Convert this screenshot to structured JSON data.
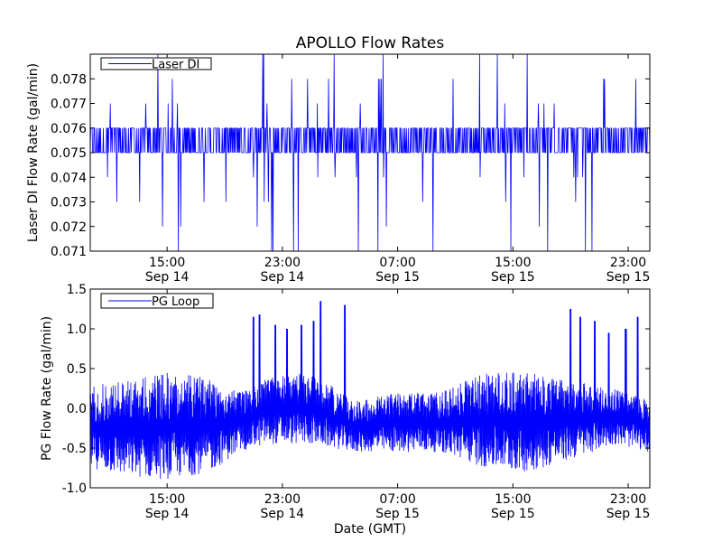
{
  "colors": {
    "series": "#0000ff",
    "axes": "#000000",
    "background": "#ffffff"
  },
  "figure_title": "APOLLO Flow Rates",
  "shared_xlabel": "Date (GMT)",
  "chart_data": [
    {
      "type": "line",
      "title": "APOLLO Flow Rates",
      "xlabel": "",
      "ylabel": "Laser DI Flow Rate (gal/min)",
      "xlim": [
        "Sep 14 09:40",
        "Sep 16 00:30"
      ],
      "ylim": [
        0.071,
        0.079
      ],
      "yticks": [
        {
          "value": 0.071,
          "label": "0.071"
        },
        {
          "value": 0.072,
          "label": "0.072"
        },
        {
          "value": 0.073,
          "label": "0.073"
        },
        {
          "value": 0.074,
          "label": "0.074"
        },
        {
          "value": 0.075,
          "label": "0.075"
        },
        {
          "value": 0.076,
          "label": "0.076"
        },
        {
          "value": 0.077,
          "label": "0.077"
        },
        {
          "value": 0.078,
          "label": "0.078"
        }
      ],
      "xticks": [
        {
          "value": "Sep 14 15:00",
          "time": "15:00",
          "date": "Sep 14"
        },
        {
          "value": "Sep 14 23:00",
          "time": "23:00",
          "date": "Sep 14"
        },
        {
          "value": "Sep 15 07:00",
          "time": "07:00",
          "date": "Sep 15"
        },
        {
          "value": "Sep 15 15:00",
          "time": "15:00",
          "date": "Sep 15"
        },
        {
          "value": "Sep 15 23:00",
          "time": "23:00",
          "date": "Sep 15"
        }
      ],
      "legend": {
        "placement": "top-left",
        "entries": [
          "Laser DI"
        ]
      },
      "grid": false,
      "series": [
        {
          "name": "Laser DI",
          "color": "#0000ff",
          "baseline_levels": [
            0.075,
            0.076
          ],
          "spike_levels": [
            0.071,
            0.072,
            0.073,
            0.074,
            0.077,
            0.078,
            0.079
          ]
        }
      ]
    },
    {
      "type": "line",
      "xlabel": "Date (GMT)",
      "ylabel": "PG Flow Rate (gal/min)",
      "xlim": [
        "Sep 14 09:40",
        "Sep 16 00:30"
      ],
      "ylim": [
        -1.0,
        1.5
      ],
      "yticks": [
        {
          "value": -1.0,
          "label": "-1.0"
        },
        {
          "value": -0.5,
          "label": "-0.5"
        },
        {
          "value": 0.0,
          "label": "0.0"
        },
        {
          "value": 0.5,
          "label": "0.5"
        },
        {
          "value": 1.0,
          "label": "1.0"
        },
        {
          "value": 1.5,
          "label": "1.5"
        }
      ],
      "xticks": [
        {
          "value": "Sep 14 15:00",
          "time": "15:00",
          "date": "Sep 14"
        },
        {
          "value": "Sep 14 23:00",
          "time": "23:00",
          "date": "Sep 14"
        },
        {
          "value": "Sep 15 07:00",
          "time": "07:00",
          "date": "Sep 15"
        },
        {
          "value": "Sep 15 15:00",
          "time": "15:00",
          "date": "Sep 15"
        },
        {
          "value": "Sep 15 23:00",
          "time": "23:00",
          "date": "Sep 15"
        }
      ],
      "legend": {
        "placement": "top-left",
        "entries": [
          "PG Loop"
        ]
      },
      "grid": false,
      "series": [
        {
          "name": "PG Loop",
          "color": "#0000ff",
          "envelope": [
            {
              "t": "Sep 14 09:40",
              "min": -0.75,
              "max": 0.3
            },
            {
              "t": "Sep 14 12:00",
              "min": -0.85,
              "max": 0.35
            },
            {
              "t": "Sep 14 15:00",
              "min": -0.9,
              "max": 0.45
            },
            {
              "t": "Sep 14 18:00",
              "min": -0.8,
              "max": 0.4
            },
            {
              "t": "Sep 14 20:00",
              "min": -0.55,
              "max": 0.2
            },
            {
              "t": "Sep 14 22:00",
              "min": -0.45,
              "max": 0.4
            },
            {
              "t": "Sep 15 01:00",
              "min": -0.45,
              "max": 0.45
            },
            {
              "t": "Sep 15 04:00",
              "min": -0.55,
              "max": 0.1
            },
            {
              "t": "Sep 15 07:00",
              "min": -0.55,
              "max": 0.2
            },
            {
              "t": "Sep 15 10:00",
              "min": -0.55,
              "max": 0.2
            },
            {
              "t": "Sep 15 13:00",
              "min": -0.75,
              "max": 0.45
            },
            {
              "t": "Sep 15 16:00",
              "min": -0.8,
              "max": 0.45
            },
            {
              "t": "Sep 15 19:00",
              "min": -0.65,
              "max": 0.35
            },
            {
              "t": "Sep 15 22:00",
              "min": -0.45,
              "max": 0.25
            },
            {
              "t": "Sep 16 00:30",
              "min": -0.55,
              "max": 0.1
            }
          ],
          "spikes": [
            {
              "t": "Sep 14 21:00",
              "max": 1.15
            },
            {
              "t": "Sep 14 21:25",
              "max": 1.18
            },
            {
              "t": "Sep 14 22:30",
              "max": 1.05
            },
            {
              "t": "Sep 14 23:20",
              "max": 1.0
            },
            {
              "t": "Sep 15 00:20",
              "max": 1.05
            },
            {
              "t": "Sep 15 01:10",
              "max": 1.1
            },
            {
              "t": "Sep 15 01:40",
              "max": 1.35
            },
            {
              "t": "Sep 15 03:20",
              "max": 1.3
            },
            {
              "t": "Sep 15 19:00",
              "max": 1.25
            },
            {
              "t": "Sep 15 19:40",
              "max": 1.15
            },
            {
              "t": "Sep 15 20:40",
              "max": 1.1
            },
            {
              "t": "Sep 15 21:40",
              "max": 0.95
            },
            {
              "t": "Sep 15 22:50",
              "max": 1.0
            },
            {
              "t": "Sep 15 23:40",
              "max": 1.15
            }
          ]
        }
      ]
    }
  ]
}
